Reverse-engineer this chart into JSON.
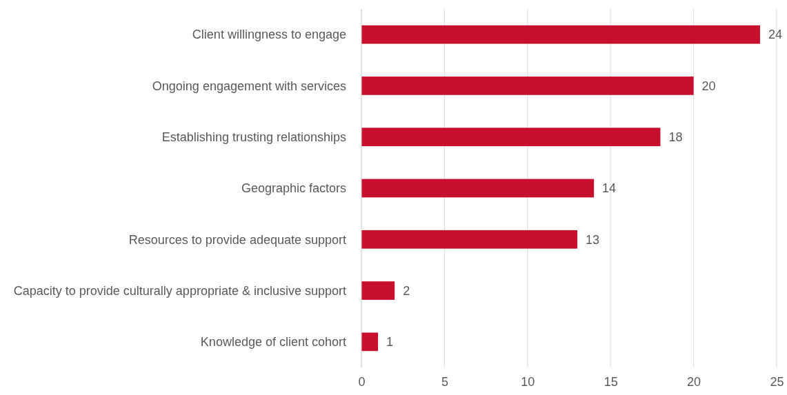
{
  "chart_data": {
    "type": "bar",
    "orientation": "horizontal",
    "categories": [
      "Client willingness to engage",
      "Ongoing engagement with services",
      "Establishing trusting relationships",
      "Geographic factors",
      "Resources to provide adequate support",
      "Capacity to provide culturally appropriate & inclusive support",
      "Knowledge of client cohort"
    ],
    "values": [
      24,
      20,
      18,
      14,
      13,
      2,
      1
    ],
    "color": "#c8102e",
    "xlim": [
      0,
      25
    ],
    "xticks": [
      0,
      5,
      10,
      15,
      20,
      25
    ],
    "grid": "x",
    "data_labels": true
  }
}
